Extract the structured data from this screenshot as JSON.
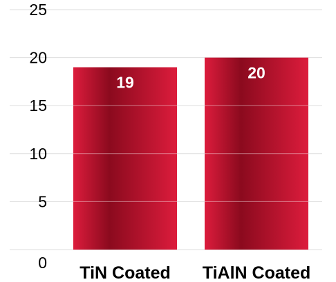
{
  "chart_data": {
    "type": "bar",
    "title": "",
    "xlabel": "",
    "ylabel": "",
    "categories": [
      "TiN Coated",
      "TiAlN Coated"
    ],
    "values": [
      19,
      20
    ],
    "data_labels": [
      "19",
      "20"
    ],
    "ylim": [
      0,
      25
    ],
    "yticks": [
      0,
      5,
      10,
      15,
      20,
      25
    ],
    "ytick_labels": [
      "0",
      "5",
      "10",
      "15",
      "20",
      "25"
    ],
    "grid": true,
    "legend": "none",
    "colors": {
      "bar_dark": "#8B0A1E",
      "bar_light": "#DC1C3C",
      "grid": "#DDDDDD"
    }
  }
}
